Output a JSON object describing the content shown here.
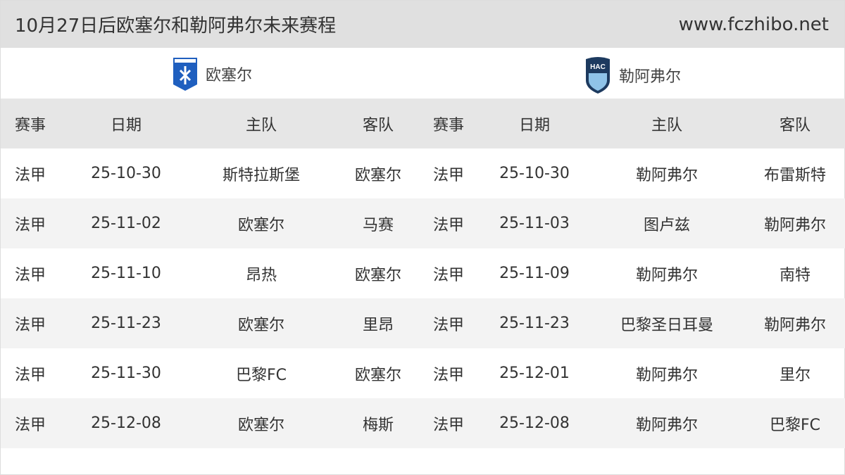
{
  "header": {
    "title": "10月27日后欧塞尔和勒阿弗尔未来赛程",
    "site": "www.fczhibo.net"
  },
  "teams": [
    {
      "name": "欧塞尔",
      "logo": "auxerre-crest",
      "color": "#1f5fbf"
    },
    {
      "name": "勒阿弗尔",
      "logo": "le-havre-crest",
      "color": "#1d3a5f"
    }
  ],
  "columns": [
    "赛事",
    "日期",
    "主队",
    "客队",
    "赛事",
    "日期",
    "主队",
    "客队"
  ],
  "rows": [
    [
      "法甲",
      "25-10-30",
      "斯特拉斯堡",
      "欧塞尔",
      "法甲",
      "25-10-30",
      "勒阿弗尔",
      "布雷斯特"
    ],
    [
      "法甲",
      "25-11-02",
      "欧塞尔",
      "马赛",
      "法甲",
      "25-11-03",
      "图卢兹",
      "勒阿弗尔"
    ],
    [
      "法甲",
      "25-11-10",
      "昂热",
      "欧塞尔",
      "法甲",
      "25-11-09",
      "勒阿弗尔",
      "南特"
    ],
    [
      "法甲",
      "25-11-23",
      "欧塞尔",
      "里昂",
      "法甲",
      "25-11-23",
      "巴黎圣日耳曼",
      "勒阿弗尔"
    ],
    [
      "法甲",
      "25-11-30",
      "巴黎FC",
      "欧塞尔",
      "法甲",
      "25-12-01",
      "勒阿弗尔",
      "里尔"
    ],
    [
      "法甲",
      "25-12-08",
      "欧塞尔",
      "梅斯",
      "法甲",
      "25-12-08",
      "勒阿弗尔",
      "巴黎FC"
    ]
  ]
}
